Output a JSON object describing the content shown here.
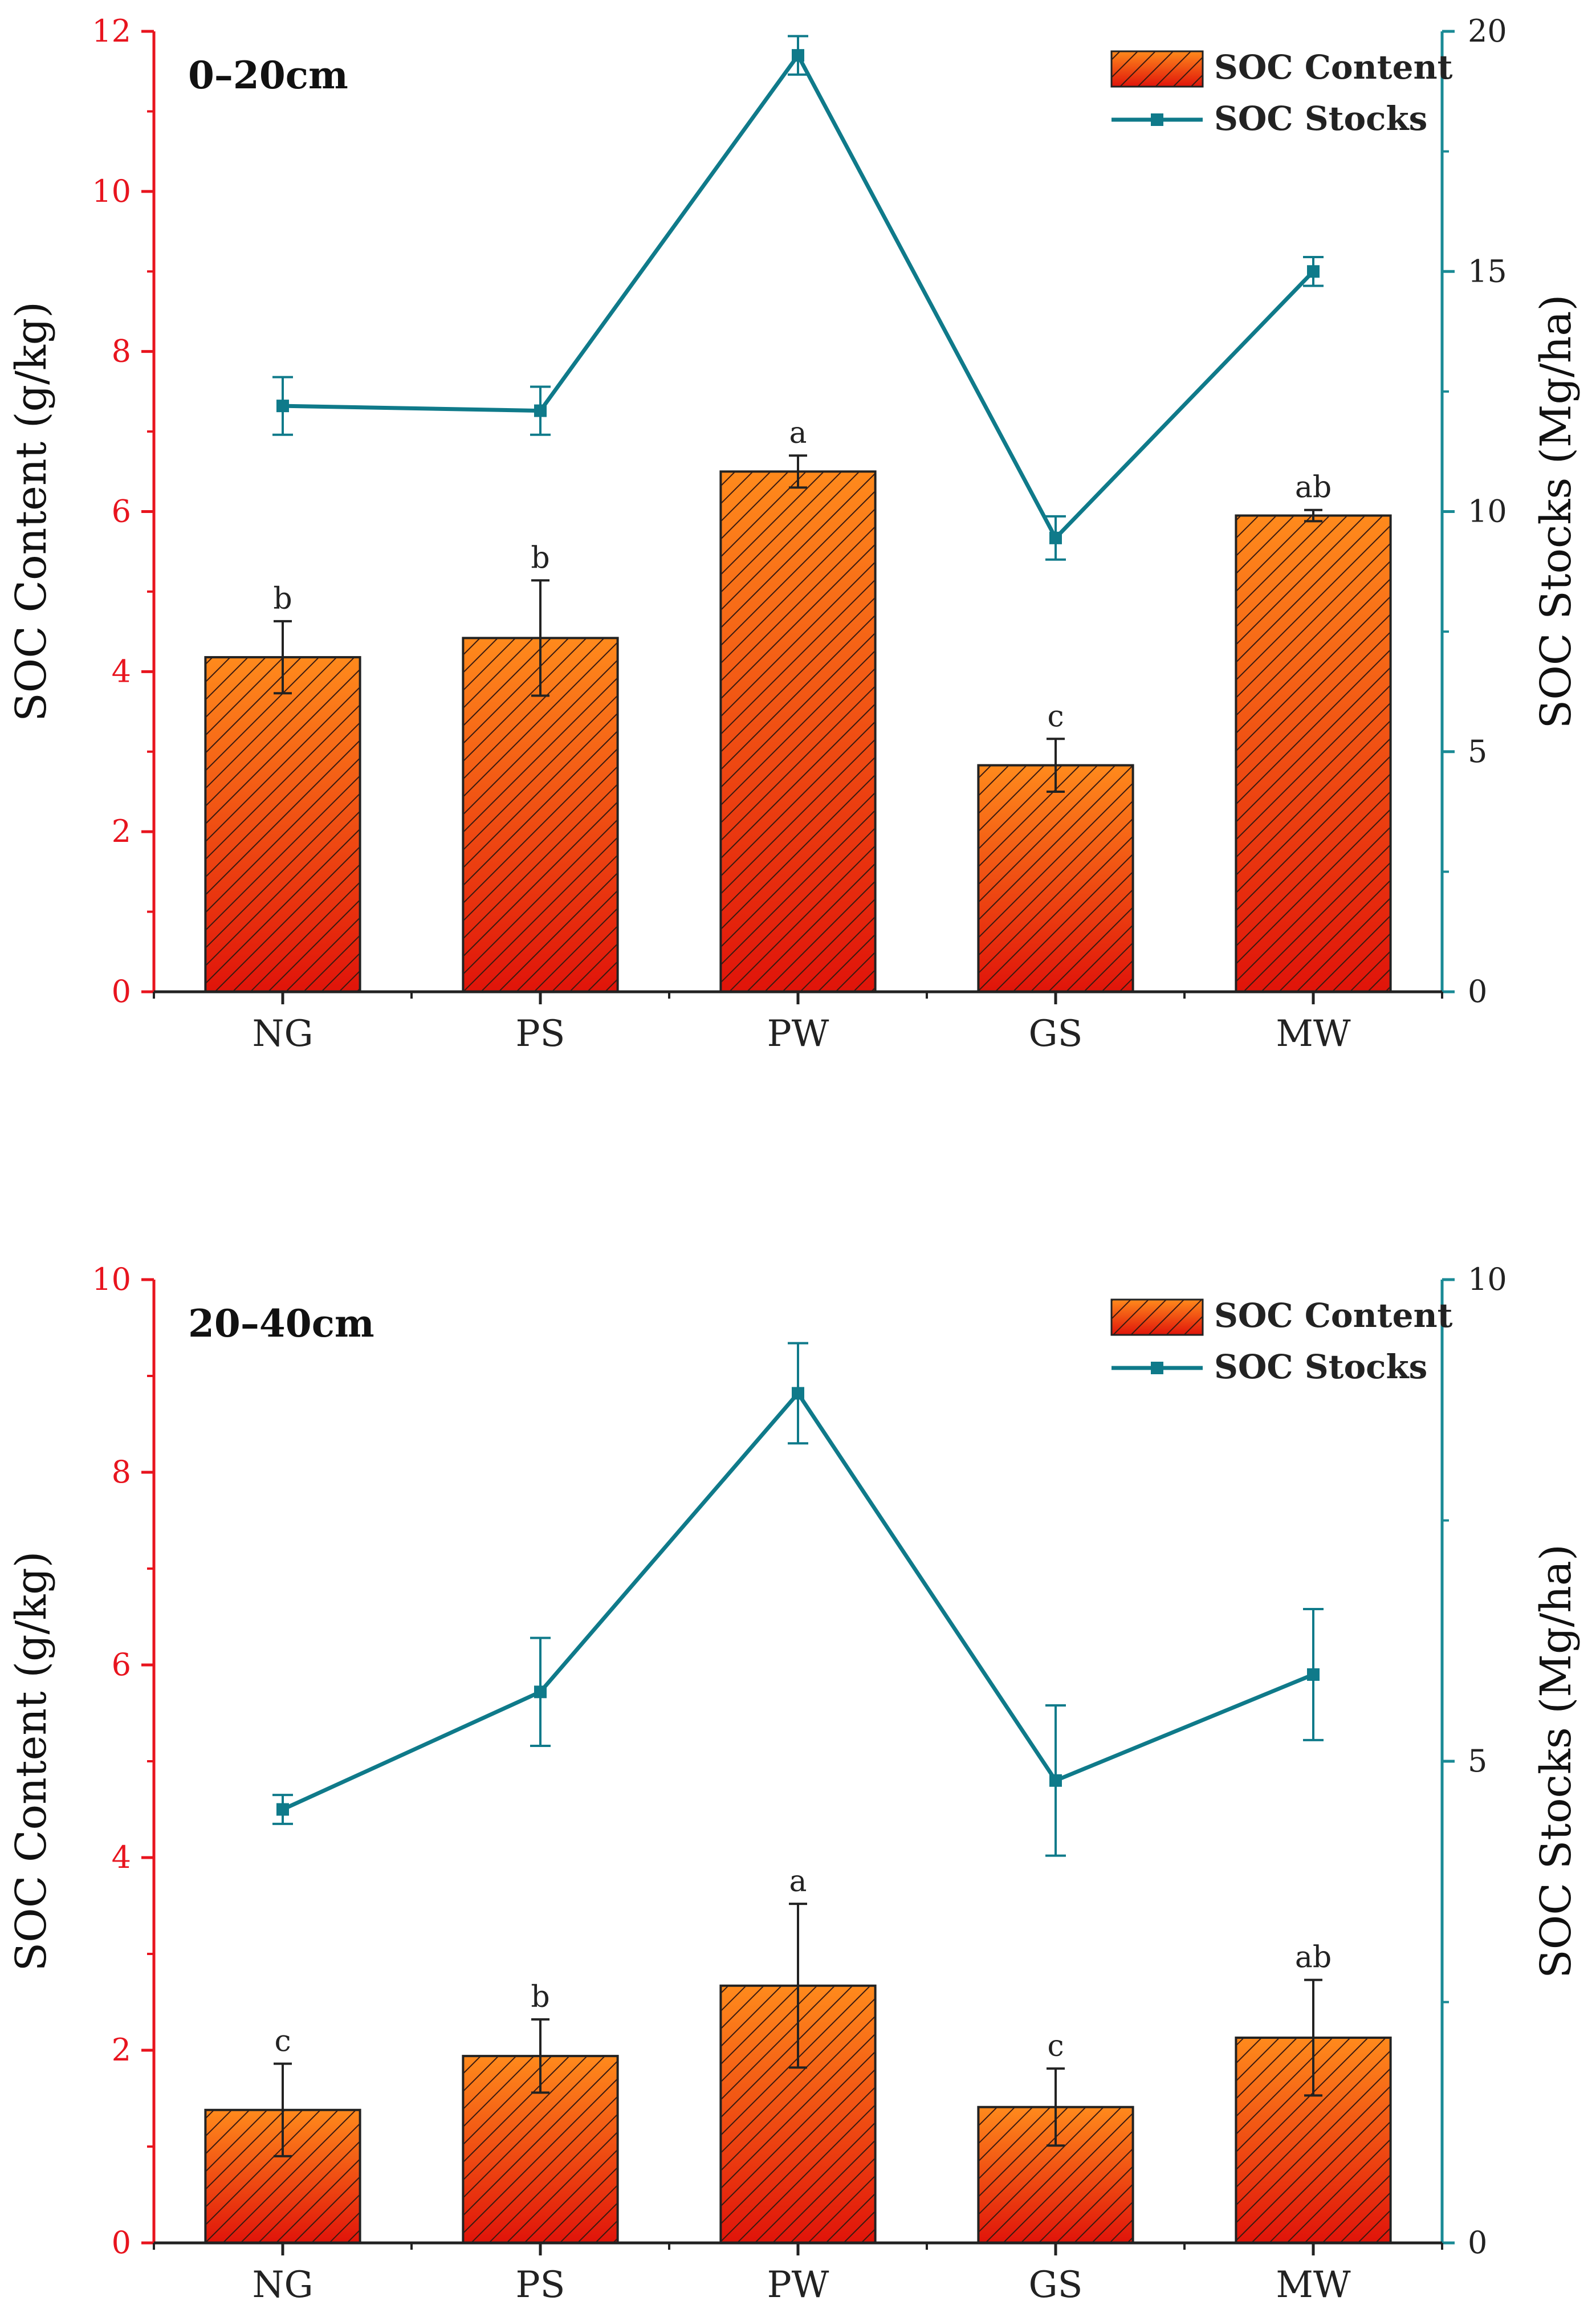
{
  "colors": {
    "bar_fill_top": "#ff8a1c",
    "bar_fill_bottom": "#e0140a",
    "bar_stroke": "#222222",
    "hatch": "#3a1a10",
    "line": "#0f7a8a",
    "left_axis": "#e8141e",
    "right_axis": "#1a8a95",
    "axis": "#222222"
  },
  "chart_data": [
    {
      "type": "bar",
      "title": "0–20cm",
      "categories": [
        "NG",
        "PS",
        "PW",
        "GS",
        "MW"
      ],
      "ylabel": "SOC Content (g/kg)",
      "y2label": "SOC Stocks (Mg/ha)",
      "ylim": [
        0,
        12
      ],
      "y2lim": [
        0,
        20
      ],
      "yticks": [
        "0",
        "2",
        "4",
        "6",
        "8",
        "10",
        "12"
      ],
      "y2ticks": [
        "0",
        "5",
        "10",
        "15",
        "20"
      ],
      "legend": {
        "bar": "SOC Content",
        "line": "SOC Stocks",
        "position": "top-right"
      },
      "series": [
        {
          "name": "SOC Content",
          "kind": "bar",
          "values": [
            4.18,
            4.42,
            6.5,
            2.83,
            5.95
          ],
          "errors": [
            0.45,
            0.72,
            0.2,
            0.33,
            0.07
          ],
          "letters": [
            "b",
            "b",
            "a",
            "c",
            "ab"
          ]
        },
        {
          "name": "SOC Stocks",
          "kind": "line",
          "axis": "right",
          "values": [
            12.2,
            12.1,
            19.5,
            9.45,
            15.0
          ],
          "errors": [
            0.6,
            0.5,
            0.4,
            0.45,
            0.3
          ]
        }
      ]
    },
    {
      "type": "bar",
      "title": "20–40cm",
      "categories": [
        "NG",
        "PS",
        "PW",
        "GS",
        "MW"
      ],
      "ylabel": "SOC Content (g/kg)",
      "y2label": "SOC Stocks (Mg/ha)",
      "ylim": [
        0,
        10
      ],
      "y2lim": [
        0,
        10
      ],
      "yticks": [
        "0",
        "2",
        "4",
        "6",
        "8",
        "10"
      ],
      "y2ticks": [
        "0",
        "5",
        "10"
      ],
      "legend": {
        "bar": "SOC Content",
        "line": "SOC Stocks",
        "position": "top-right"
      },
      "series": [
        {
          "name": "SOC Content",
          "kind": "bar",
          "values": [
            1.38,
            1.94,
            2.67,
            1.41,
            2.13
          ],
          "errors": [
            0.48,
            0.38,
            0.85,
            0.4,
            0.6
          ],
          "letters": [
            "c",
            "b",
            "a",
            "c",
            "ab"
          ]
        },
        {
          "name": "SOC Stocks",
          "kind": "line",
          "axis": "right",
          "values": [
            4.5,
            5.72,
            8.82,
            4.8,
            5.9
          ],
          "errors": [
            0.15,
            0.56,
            0.52,
            0.78,
            0.68
          ]
        }
      ]
    }
  ]
}
